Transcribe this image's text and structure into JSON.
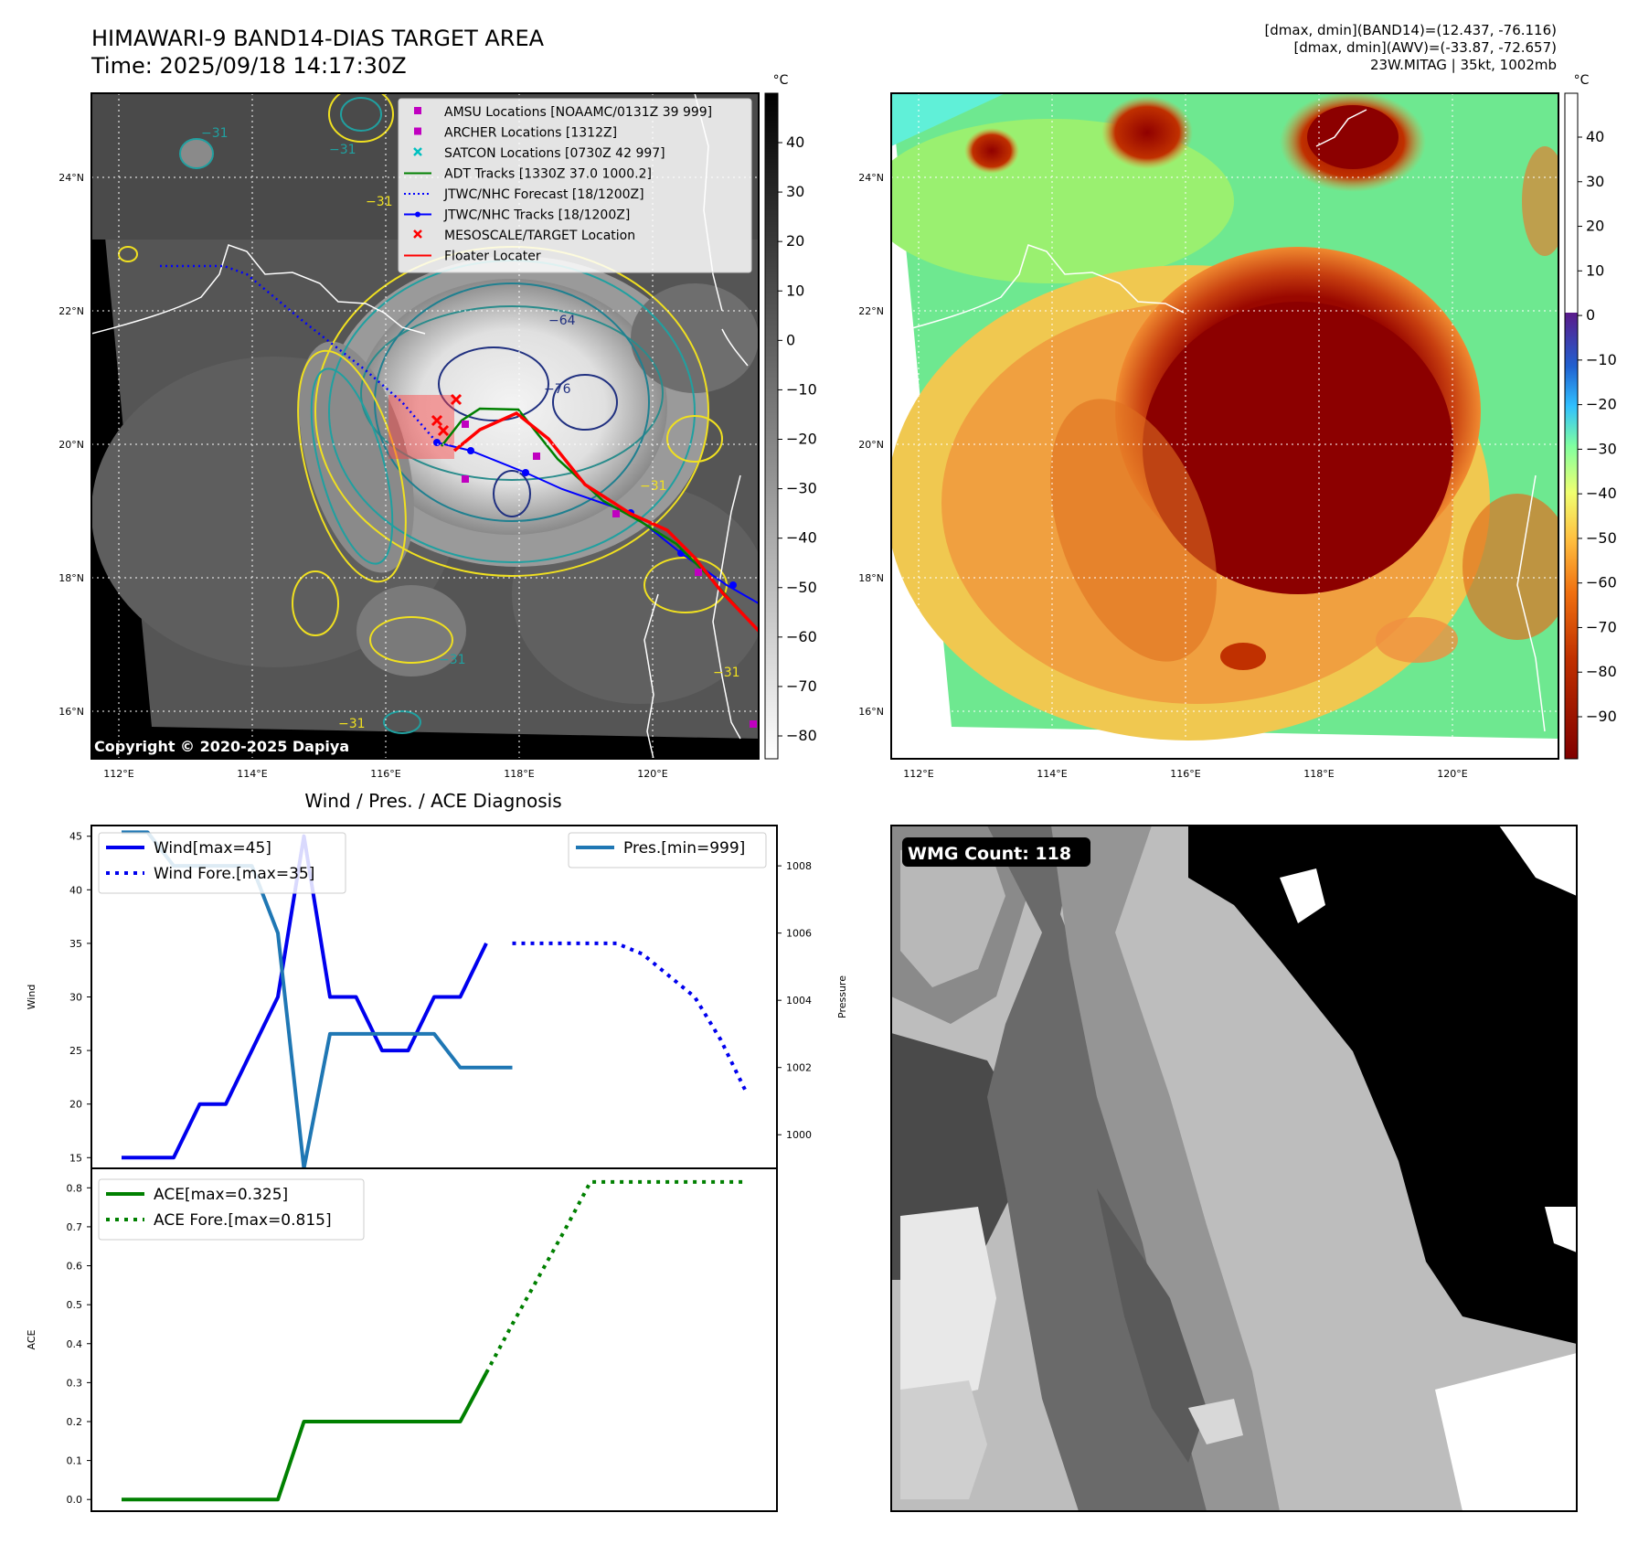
{
  "header": {
    "title_line1": "HIMAWARI-9 BAND14-DIAS TARGET AREA",
    "title_line2": "Time: 2025/09/18 14:17:30Z",
    "stats_line1": "[dmax, dmin](BAND14)=(12.437, -76.116)",
    "stats_line2": "[dmax, dmin](AWV)=(-33.87, -72.657)",
    "stats_line3": "23W.MITAG | 35kt, 1002mb"
  },
  "map_left": {
    "lon_ticks": [
      "112°E",
      "114°E",
      "116°E",
      "118°E",
      "120°E"
    ],
    "lat_ticks": [
      "24°N",
      "22°N",
      "20°N",
      "18°N",
      "16°N"
    ],
    "colorbar_unit": "°C",
    "colorbar_ticks": [
      "40",
      "30",
      "20",
      "10",
      "0",
      "−10",
      "−20",
      "−30",
      "−40",
      "−50",
      "−60",
      "−70",
      "−80"
    ],
    "contour_labels": [
      "−31",
      "−31",
      "−31",
      "−64",
      "−76",
      "−31",
      "−31",
      "−31",
      "−31"
    ],
    "copyright": "Copyright © 2020-2025 Dapiya",
    "legend": [
      {
        "label": "AMSU Locations [NOAAMC/0131Z 39 999]",
        "marker": "square",
        "color": "#c000c0"
      },
      {
        "label": "ARCHER Locations [1312Z]",
        "marker": "square",
        "color": "#c000c0"
      },
      {
        "label": "SATCON Locations [0730Z 42 997]",
        "marker": "x",
        "color": "#00c0c0"
      },
      {
        "label": "ADT Tracks [1330Z 37.0 1000.2]",
        "marker": "line",
        "color": "#008000"
      },
      {
        "label": "JTWC/NHC Forecast [18/1200Z]",
        "marker": "dotted",
        "color": "#0000ff"
      },
      {
        "label": "JTWC/NHC Tracks [18/1200Z]",
        "marker": "line-dot",
        "color": "#0000ff"
      },
      {
        "label": "MESOSCALE/TARGET Location",
        "marker": "x",
        "color": "#ff0000"
      },
      {
        "label": "Floater Locater",
        "marker": "line",
        "color": "#ff0000"
      }
    ]
  },
  "map_right": {
    "lon_ticks": [
      "112°E",
      "114°E",
      "116°E",
      "118°E",
      "120°E"
    ],
    "lat_ticks": [
      "24°N",
      "22°N",
      "20°N",
      "18°N",
      "16°N"
    ],
    "colorbar_unit": "°C",
    "colorbar_ticks": [
      "40",
      "30",
      "20",
      "10",
      "0",
      "−10",
      "−20",
      "−30",
      "−40",
      "−50",
      "−60",
      "−70",
      "−80",
      "−90"
    ]
  },
  "diag_title": "Wind / Pres. / ACE Diagnosis",
  "wmg_label": "WMG Count: 118",
  "chart_data": [
    {
      "type": "line",
      "title": "Wind / Pres. / ACE Diagnosis",
      "ylabel": "Wind",
      "y2label": "Pressure",
      "ylim": [
        14,
        46
      ],
      "y2lim": [
        999,
        1009.2
      ],
      "yticks": [
        "15",
        "20",
        "25",
        "30",
        "35",
        "40",
        "45"
      ],
      "y2ticks": [
        "1000",
        "1002",
        "1004",
        "1006",
        "1008"
      ],
      "x_count": 25,
      "series": [
        {
          "name": "Wind[max=45]",
          "axis": "left",
          "style": "solid",
          "color": "#0000ee",
          "x": [
            0,
            1,
            2,
            3,
            4,
            5,
            6,
            7,
            8,
            9,
            10,
            11,
            12,
            13,
            14,
            15
          ],
          "values": [
            15,
            15,
            15,
            20,
            20,
            25,
            30,
            45,
            30,
            30,
            25,
            25,
            30,
            30,
            35,
            null
          ]
        },
        {
          "name": "Wind Fore.[max=35]",
          "axis": "left",
          "style": "dotted",
          "color": "#0000ee",
          "x": [
            15,
            16,
            17,
            18,
            19,
            20,
            21,
            22,
            23,
            24
          ],
          "values": [
            35,
            35,
            35,
            35,
            35,
            34,
            32,
            30,
            26,
            21
          ]
        },
        {
          "name": "Pres.[min=999]",
          "axis": "right",
          "style": "solid",
          "color": "#1f77b4",
          "x": [
            0,
            1,
            2,
            3,
            4,
            5,
            6,
            7,
            8,
            9,
            10,
            11,
            12,
            13,
            14,
            15
          ],
          "values": [
            1009,
            1009,
            1008,
            1008,
            1008,
            1008,
            1006,
            999,
            1003,
            1003,
            1003,
            1003,
            1003,
            1002,
            1002,
            1002
          ]
        }
      ]
    },
    {
      "type": "line",
      "ylabel": "ACE",
      "ylim": [
        -0.03,
        0.85
      ],
      "yticks": [
        "0.0",
        "0.1",
        "0.2",
        "0.3",
        "0.4",
        "0.5",
        "0.6",
        "0.7",
        "0.8"
      ],
      "x_count": 25,
      "series": [
        {
          "name": "ACE[max=0.325]",
          "style": "solid",
          "color": "#008000",
          "x": [
            0,
            1,
            2,
            3,
            4,
            5,
            6,
            7,
            8,
            9,
            10,
            11,
            12,
            13,
            14,
            15
          ],
          "values": [
            0,
            0,
            0,
            0,
            0,
            0,
            0,
            0.2,
            0.2,
            0.2,
            0.2,
            0.2,
            0.2,
            0.2,
            0.325,
            null
          ]
        },
        {
          "name": "ACE Fore.[max=0.815]",
          "style": "dotted",
          "color": "#008000",
          "x": [
            14,
            15,
            16,
            17,
            18,
            19,
            20,
            21,
            22,
            23,
            24
          ],
          "values": [
            0.325,
            0.45,
            0.57,
            0.69,
            0.815,
            0.815,
            0.815,
            0.815,
            0.815,
            0.815,
            0.815
          ]
        }
      ]
    }
  ]
}
